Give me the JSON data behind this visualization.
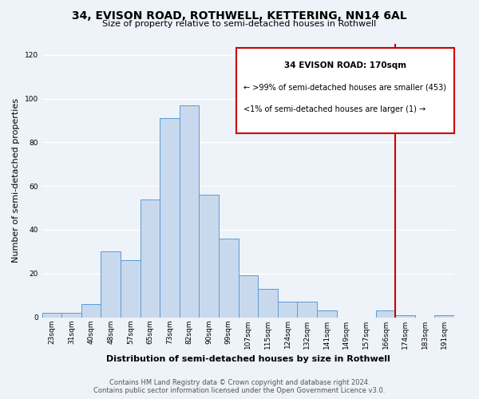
{
  "title": "34, EVISON ROAD, ROTHWELL, KETTERING, NN14 6AL",
  "subtitle": "Size of property relative to semi-detached houses in Rothwell",
  "xlabel": "Distribution of semi-detached houses by size in Rothwell",
  "ylabel": "Number of semi-detached properties",
  "bar_labels": [
    "23sqm",
    "31sqm",
    "40sqm",
    "48sqm",
    "57sqm",
    "65sqm",
    "73sqm",
    "82sqm",
    "90sqm",
    "99sqm",
    "107sqm",
    "115sqm",
    "124sqm",
    "132sqm",
    "141sqm",
    "149sqm",
    "157sqm",
    "166sqm",
    "174sqm",
    "183sqm",
    "191sqm"
  ],
  "bar_values": [
    2,
    2,
    6,
    30,
    26,
    54,
    91,
    97,
    56,
    36,
    19,
    13,
    7,
    7,
    3,
    0,
    0,
    3,
    1,
    0,
    1
  ],
  "bar_color": "#c9d9ed",
  "bar_edge_color": "#5b9bd5",
  "ylim": [
    0,
    125
  ],
  "yticks": [
    0,
    20,
    40,
    60,
    80,
    100,
    120
  ],
  "property_line_x": 17.5,
  "property_line_label": "34 EVISON ROAD: 170sqm",
  "annotation_smaller": "← >99% of semi-detached houses are smaller (453)",
  "annotation_larger": "<1% of semi-detached houses are larger (1) →",
  "footer_line1": "Contains HM Land Registry data © Crown copyright and database right 2024.",
  "footer_line2": "Contains public sector information licensed under the Open Government Licence v3.0.",
  "bg_color": "#eef2f9",
  "grid_color": "#ffffff",
  "box_line_color": "#cc0000",
  "title_fontsize": 10,
  "subtitle_fontsize": 8,
  "ylabel_fontsize": 8,
  "xlabel_fontsize": 8,
  "tick_fontsize": 6.5,
  "footer_fontsize": 6,
  "annotation_fontsize": 7
}
